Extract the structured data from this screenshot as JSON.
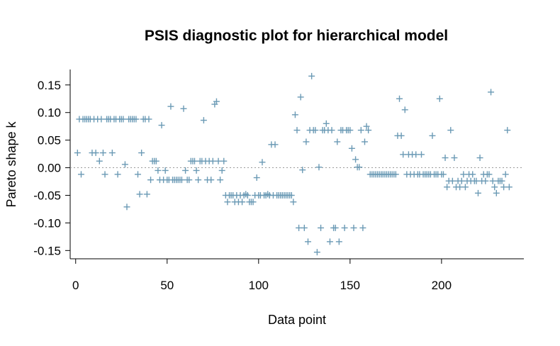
{
  "chart_data": {
    "type": "scatter",
    "title": "PSIS diagnostic plot for hierarchical model",
    "xlabel": "Data point",
    "ylabel": "Pareto shape k",
    "xlim": [
      -3,
      245
    ],
    "ylim": [
      -0.165,
      0.178
    ],
    "x_ticks": [
      0,
      50,
      100,
      150,
      200
    ],
    "y_ticks": [
      0.15,
      0.1,
      0.05,
      0.0,
      -0.05,
      -0.1,
      -0.15
    ],
    "y_tick_labels": [
      "0.15",
      "0.10",
      "0.05",
      "0.00",
      "-0.05",
      "-0.10",
      "-0.15"
    ],
    "reference_line_y": 0,
    "grid": false,
    "marker": "+",
    "point_color": "#6b9ab5",
    "series": [
      {
        "points": [
          [
            1,
            0.027
          ],
          [
            2,
            0.088
          ],
          [
            3,
            -0.012
          ],
          [
            4,
            0.088
          ],
          [
            5,
            0.088
          ],
          [
            6,
            0.088
          ],
          [
            7,
            0.088
          ],
          [
            8,
            0.088
          ],
          [
            9,
            0.027
          ],
          [
            10,
            0.088
          ],
          [
            11,
            0.027
          ],
          [
            12,
            0.088
          ],
          [
            13,
            0.012
          ],
          [
            14,
            0.088
          ],
          [
            15,
            0.027
          ],
          [
            16,
            -0.012
          ],
          [
            17,
            0.088
          ],
          [
            18,
            0.088
          ],
          [
            19,
            0.088
          ],
          [
            20,
            0.027
          ],
          [
            21,
            0.088
          ],
          [
            22,
            0.088
          ],
          [
            23,
            -0.012
          ],
          [
            24,
            0.088
          ],
          [
            25,
            0.088
          ],
          [
            26,
            0.088
          ],
          [
            27,
            0.006
          ],
          [
            28,
            -0.071
          ],
          [
            29,
            0.088
          ],
          [
            30,
            0.088
          ],
          [
            31,
            0.088
          ],
          [
            32,
            0.088
          ],
          [
            33,
            0.088
          ],
          [
            34,
            -0.012
          ],
          [
            35,
            -0.048
          ],
          [
            36,
            0.027
          ],
          [
            37,
            0.088
          ],
          [
            38,
            0.088
          ],
          [
            39,
            -0.048
          ],
          [
            40,
            0.088
          ],
          [
            41,
            -0.022
          ],
          [
            42,
            0.012
          ],
          [
            43,
            0.012
          ],
          [
            44,
            0.012
          ],
          [
            45,
            -0.005
          ],
          [
            46,
            -0.022
          ],
          [
            47,
            0.077
          ],
          [
            48,
            -0.022
          ],
          [
            49,
            -0.005
          ],
          [
            50,
            -0.022
          ],
          [
            51,
            -0.022
          ],
          [
            52,
            0.111
          ],
          [
            53,
            -0.022
          ],
          [
            54,
            -0.022
          ],
          [
            55,
            -0.022
          ],
          [
            56,
            -0.022
          ],
          [
            57,
            -0.022
          ],
          [
            58,
            -0.022
          ],
          [
            59,
            0.107
          ],
          [
            60,
            -0.005
          ],
          [
            61,
            -0.022
          ],
          [
            62,
            -0.022
          ],
          [
            63,
            0.012
          ],
          [
            64,
            0.012
          ],
          [
            65,
            0.012
          ],
          [
            66,
            -0.005
          ],
          [
            67,
            -0.022
          ],
          [
            68,
            0.012
          ],
          [
            69,
            0.012
          ],
          [
            70,
            0.086
          ],
          [
            71,
            0.012
          ],
          [
            72,
            -0.022
          ],
          [
            73,
            0.012
          ],
          [
            74,
            -0.022
          ],
          [
            75,
            0.012
          ],
          [
            76,
            0.115
          ],
          [
            77,
            0.12
          ],
          [
            78,
            0.012
          ],
          [
            79,
            -0.022
          ],
          [
            80,
            -0.005
          ],
          [
            81,
            0.012
          ],
          [
            82,
            -0.05
          ],
          [
            83,
            -0.062
          ],
          [
            84,
            -0.05
          ],
          [
            85,
            -0.05
          ],
          [
            86,
            -0.05
          ],
          [
            87,
            -0.062
          ],
          [
            88,
            -0.05
          ],
          [
            89,
            -0.062
          ],
          [
            90,
            -0.05
          ],
          [
            91,
            -0.062
          ],
          [
            92,
            -0.05
          ],
          [
            93,
            -0.048
          ],
          [
            94,
            -0.05
          ],
          [
            95,
            -0.062
          ],
          [
            96,
            -0.062
          ],
          [
            97,
            -0.062
          ],
          [
            98,
            -0.05
          ],
          [
            99,
            -0.018
          ],
          [
            100,
            -0.05
          ],
          [
            101,
            -0.05
          ],
          [
            102,
            0.01
          ],
          [
            103,
            -0.05
          ],
          [
            104,
            -0.05
          ],
          [
            105,
            -0.048
          ],
          [
            106,
            -0.05
          ],
          [
            107,
            0.042
          ],
          [
            108,
            -0.05
          ],
          [
            109,
            0.042
          ],
          [
            110,
            -0.05
          ],
          [
            111,
            -0.05
          ],
          [
            112,
            -0.05
          ],
          [
            113,
            -0.05
          ],
          [
            114,
            -0.05
          ],
          [
            115,
            -0.05
          ],
          [
            116,
            -0.05
          ],
          [
            117,
            -0.05
          ],
          [
            118,
            -0.05
          ],
          [
            119,
            -0.062
          ],
          [
            120,
            0.096
          ],
          [
            121,
            0.068
          ],
          [
            122,
            -0.109
          ],
          [
            123,
            0.128
          ],
          [
            124,
            -0.004
          ],
          [
            125,
            -0.109
          ],
          [
            126,
            0.047
          ],
          [
            127,
            -0.134
          ],
          [
            128,
            0.068
          ],
          [
            129,
            0.166
          ],
          [
            130,
            0.068
          ],
          [
            131,
            0.068
          ],
          [
            132,
            -0.153
          ],
          [
            133,
            0.001
          ],
          [
            134,
            -0.109
          ],
          [
            135,
            0.068
          ],
          [
            136,
            0.068
          ],
          [
            137,
            0.08
          ],
          [
            138,
            0.068
          ],
          [
            139,
            -0.134
          ],
          [
            140,
            0.068
          ],
          [
            141,
            -0.109
          ],
          [
            142,
            -0.109
          ],
          [
            143,
            0.047
          ],
          [
            144,
            -0.134
          ],
          [
            145,
            0.068
          ],
          [
            146,
            0.068
          ],
          [
            147,
            -0.109
          ],
          [
            148,
            0.068
          ],
          [
            149,
            0.068
          ],
          [
            150,
            0.068
          ],
          [
            151,
            0.035
          ],
          [
            152,
            -0.109
          ],
          [
            153,
            0.015
          ],
          [
            154,
            0.001
          ],
          [
            155,
            0.001
          ],
          [
            156,
            0.068
          ],
          [
            157,
            -0.109
          ],
          [
            158,
            0.047
          ],
          [
            159,
            0.075
          ],
          [
            160,
            0.068
          ],
          [
            161,
            -0.012
          ],
          [
            162,
            -0.012
          ],
          [
            163,
            -0.012
          ],
          [
            164,
            -0.012
          ],
          [
            165,
            -0.012
          ],
          [
            166,
            -0.012
          ],
          [
            167,
            -0.012
          ],
          [
            168,
            -0.012
          ],
          [
            169,
            -0.012
          ],
          [
            170,
            -0.012
          ],
          [
            171,
            -0.012
          ],
          [
            172,
            -0.012
          ],
          [
            173,
            -0.012
          ],
          [
            174,
            -0.012
          ],
          [
            175,
            -0.012
          ],
          [
            176,
            0.058
          ],
          [
            177,
            0.125
          ],
          [
            178,
            0.058
          ],
          [
            179,
            0.024
          ],
          [
            180,
            0.105
          ],
          [
            181,
            -0.012
          ],
          [
            182,
            0.024
          ],
          [
            183,
            -0.012
          ],
          [
            184,
            0.024
          ],
          [
            185,
            -0.012
          ],
          [
            186,
            0.024
          ],
          [
            187,
            -0.012
          ],
          [
            188,
            -0.012
          ],
          [
            189,
            0.024
          ],
          [
            190,
            -0.012
          ],
          [
            191,
            -0.012
          ],
          [
            192,
            -0.012
          ],
          [
            193,
            -0.012
          ],
          [
            194,
            -0.012
          ],
          [
            195,
            0.058
          ],
          [
            196,
            -0.012
          ],
          [
            197,
            -0.012
          ],
          [
            198,
            -0.012
          ],
          [
            199,
            0.125
          ],
          [
            200,
            -0.012
          ],
          [
            201,
            -0.012
          ],
          [
            202,
            0.018
          ],
          [
            203,
            -0.035
          ],
          [
            204,
            -0.024
          ],
          [
            205,
            0.068
          ],
          [
            206,
            -0.024
          ],
          [
            207,
            0.018
          ],
          [
            208,
            -0.035
          ],
          [
            209,
            -0.024
          ],
          [
            210,
            -0.035
          ],
          [
            211,
            -0.024
          ],
          [
            212,
            -0.012
          ],
          [
            213,
            -0.035
          ],
          [
            214,
            -0.024
          ],
          [
            215,
            -0.012
          ],
          [
            216,
            -0.024
          ],
          [
            217,
            -0.012
          ],
          [
            218,
            -0.024
          ],
          [
            219,
            -0.024
          ],
          [
            220,
            -0.046
          ],
          [
            221,
            0.018
          ],
          [
            222,
            -0.024
          ],
          [
            223,
            -0.012
          ],
          [
            224,
            -0.024
          ],
          [
            225,
            -0.012
          ],
          [
            226,
            -0.012
          ],
          [
            227,
            0.137
          ],
          [
            228,
            -0.024
          ],
          [
            229,
            -0.035
          ],
          [
            230,
            -0.046
          ],
          [
            231,
            -0.024
          ],
          [
            232,
            -0.024
          ],
          [
            233,
            -0.024
          ],
          [
            234,
            -0.035
          ],
          [
            235,
            -0.012
          ],
          [
            236,
            0.068
          ],
          [
            237,
            -0.035
          ]
        ]
      }
    ]
  }
}
